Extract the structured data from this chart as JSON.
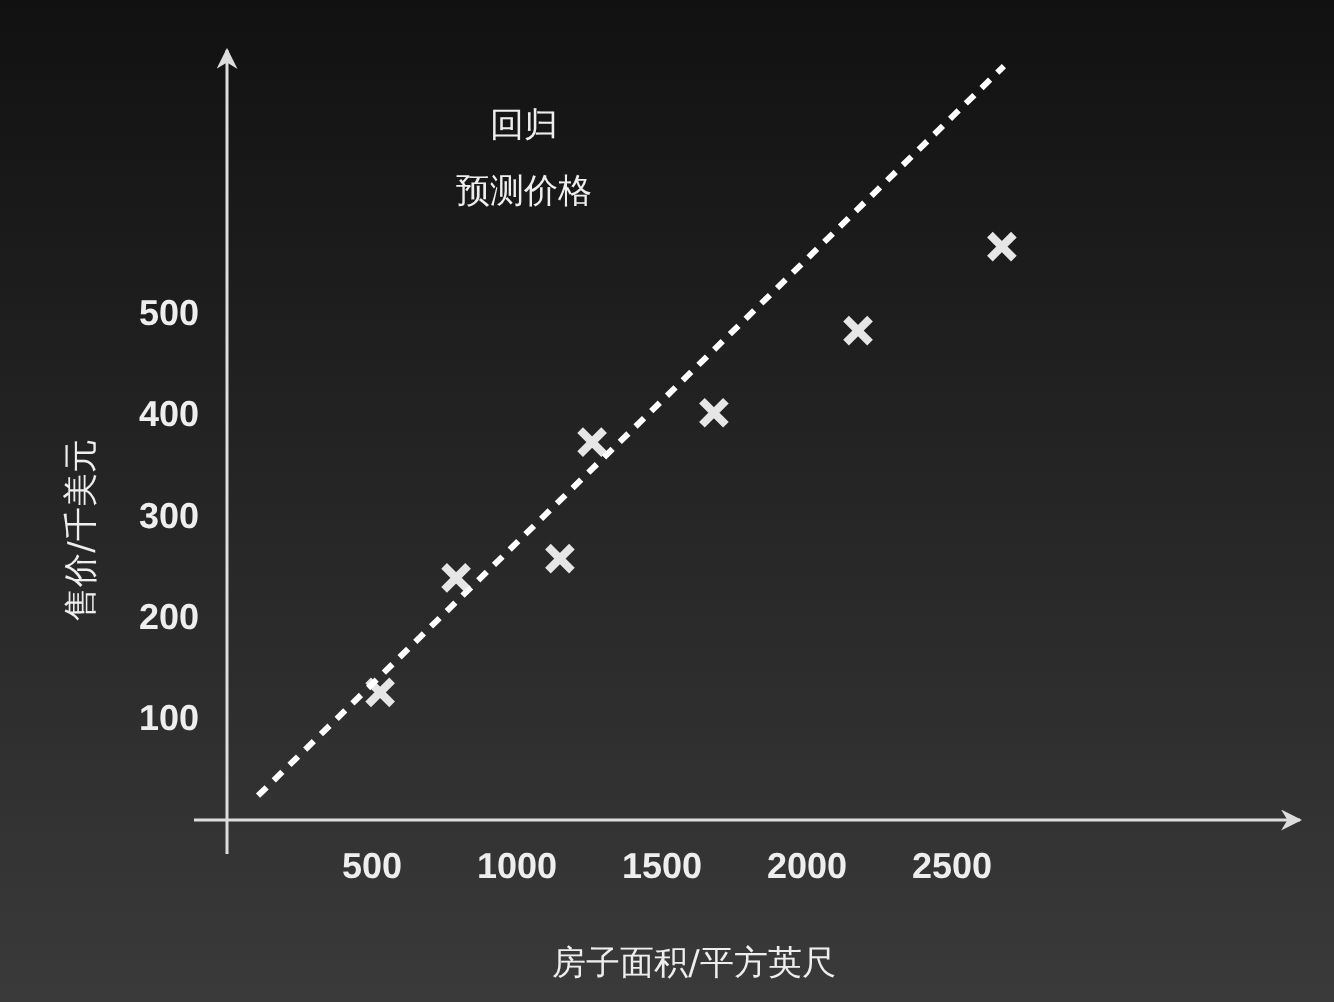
{
  "chart_data": {
    "type": "scatter",
    "xlabel": "房子面积/平方英尺",
    "ylabel": "售价/千美元",
    "annotations": [
      "回归",
      "预测价格"
    ],
    "xlim": [
      0,
      3700
    ],
    "ylim": [
      0,
      760
    ],
    "xticks": [
      500,
      1000,
      1500,
      2000,
      2500
    ],
    "yticks": [
      100,
      200,
      300,
      400,
      500
    ],
    "grid": false,
    "series": [
      {
        "color": "#e6e6e6",
        "marker": "cross",
        "x": [
          528,
          790,
          1148,
          1259,
          1679,
          2176,
          2672
        ],
        "values": [
          126,
          239,
          258,
          373,
          402,
          483,
          566
        ]
      },
      {
        "type": "line",
        "color": "#ffffff",
        "line_style": "dashed",
        "marker": "none",
        "x": [
          107,
          2679
        ],
        "values": [
          24,
          744
        ]
      }
    ]
  }
}
